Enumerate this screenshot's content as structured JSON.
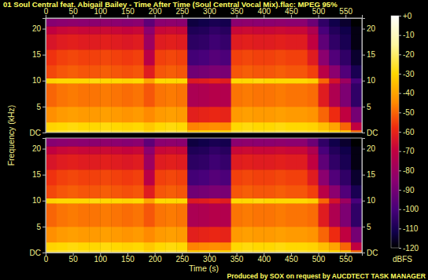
{
  "chart_data": {
    "type": "heatmap",
    "title": "01 Soul Central feat. Abigail Bailey - Time After Time (Soul Central Vocal Mix).flac: MPEG 95%",
    "annotation": "Produced by SOX on request by AUCDTECT TASK MANAGER",
    "x_label": "Time (s)",
    "y_label": "Frequency (kHz)",
    "xlim": [
      0,
      580
    ],
    "xticks": [
      0,
      50,
      100,
      150,
      200,
      250,
      300,
      350,
      400,
      450,
      500,
      550
    ],
    "ylim": [
      0,
      22.05
    ],
    "yticks": [
      {
        "value": 0,
        "label": "DC"
      },
      5,
      10,
      15,
      20
    ],
    "x_edges": [
      0,
      20,
      40,
      60,
      80,
      100,
      120,
      140,
      160,
      180,
      200,
      220,
      240,
      260,
      280,
      300,
      320,
      340,
      360,
      380,
      400,
      420,
      440,
      460,
      480,
      500,
      520,
      540,
      560,
      580
    ],
    "y_edges": [
      0,
      0.5,
      2,
      5,
      9.5,
      10.5,
      13,
      16,
      19,
      20.5,
      22.05
    ],
    "channels": [
      {
        "cells": [
          [
            -26,
            -25,
            -24,
            -25,
            -25,
            -24,
            -25,
            -26,
            -25,
            -28,
            -25,
            -24,
            -25,
            -33,
            -32,
            -31,
            -32,
            -25,
            -24,
            -25,
            -25,
            -24,
            -25,
            -25,
            -26,
            -28,
            -30,
            -35,
            -50
          ],
          [
            -31,
            -30,
            -29,
            -30,
            -30,
            -29,
            -30,
            -31,
            -30,
            -33,
            -30,
            -29,
            -30,
            -46,
            -45,
            -44,
            -45,
            -30,
            -29,
            -30,
            -30,
            -29,
            -30,
            -30,
            -31,
            -35,
            -40,
            -50,
            -70
          ],
          [
            -44,
            -42,
            -41,
            -42,
            -42,
            -41,
            -42,
            -43,
            -42,
            -45,
            -42,
            -41,
            -42,
            -61,
            -60,
            -59,
            -60,
            -42,
            -41,
            -42,
            -42,
            -41,
            -42,
            -42,
            -43,
            -50,
            -58,
            -70,
            -90
          ],
          [
            -50,
            -48,
            -47,
            -48,
            -48,
            -47,
            -48,
            -49,
            -48,
            -52,
            -48,
            -47,
            -48,
            -76,
            -75,
            -73,
            -74,
            -48,
            -47,
            -48,
            -48,
            -47,
            -48,
            -48,
            -49,
            -62,
            -75,
            -88,
            -105
          ],
          [
            -31,
            -30,
            -30,
            -30,
            -29,
            -30,
            -30,
            -31,
            -30,
            -40,
            -30,
            -30,
            -30,
            -63,
            -62,
            -60,
            -62,
            -30,
            -30,
            -29,
            -30,
            -30,
            -30,
            -30,
            -32,
            -50,
            -65,
            -80,
            -100
          ],
          [
            -54,
            -52,
            -51,
            -52,
            -52,
            -51,
            -52,
            -53,
            -52,
            -62,
            -52,
            -51,
            -52,
            -91,
            -90,
            -88,
            -89,
            -52,
            -51,
            -52,
            -52,
            -51,
            -52,
            -52,
            -55,
            -72,
            -85,
            -98,
            -110
          ],
          [
            -57,
            -55,
            -54,
            -55,
            -55,
            -54,
            -55,
            -56,
            -55,
            -72,
            -55,
            -54,
            -55,
            -101,
            -100,
            -97,
            -99,
            -55,
            -54,
            -55,
            -55,
            -54,
            -55,
            -55,
            -62,
            -85,
            -98,
            -105,
            -115
          ],
          [
            -64,
            -62,
            -61,
            -62,
            -62,
            -61,
            -62,
            -63,
            -62,
            -80,
            -62,
            -61,
            -62,
            -106,
            -105,
            -102,
            -104,
            -62,
            -61,
            -62,
            -62,
            -61,
            -62,
            -62,
            -70,
            -95,
            -105,
            -110,
            -118
          ],
          [
            -70,
            -68,
            -67,
            -68,
            -68,
            -67,
            -68,
            -69,
            -68,
            -85,
            -68,
            -67,
            -68,
            -109,
            -108,
            -105,
            -107,
            -68,
            -67,
            -68,
            -68,
            -67,
            -68,
            -68,
            -75,
            -100,
            -108,
            -112,
            -118
          ],
          [
            -86,
            -85,
            -84,
            -85,
            -85,
            -84,
            -85,
            -86,
            -85,
            -95,
            -85,
            -84,
            -85,
            -113,
            -112,
            -110,
            -111,
            -85,
            -84,
            -85,
            -85,
            -84,
            -85,
            -85,
            -92,
            -105,
            -112,
            -115,
            -120
          ]
        ]
      },
      {
        "cells": [
          [
            -26,
            -25,
            -24,
            -25,
            -25,
            -24,
            -25,
            -26,
            -25,
            -28,
            -25,
            -24,
            -25,
            -33,
            -32,
            -31,
            -32,
            -25,
            -24,
            -25,
            -25,
            -24,
            -25,
            -25,
            -26,
            -28,
            -30,
            -35,
            -50
          ],
          [
            -31,
            -30,
            -29,
            -30,
            -30,
            -29,
            -30,
            -31,
            -30,
            -33,
            -30,
            -29,
            -30,
            -46,
            -45,
            -44,
            -45,
            -30,
            -29,
            -30,
            -30,
            -29,
            -30,
            -30,
            -31,
            -35,
            -40,
            -50,
            -70
          ],
          [
            -44,
            -42,
            -41,
            -42,
            -42,
            -41,
            -42,
            -43,
            -42,
            -45,
            -42,
            -41,
            -42,
            -61,
            -60,
            -59,
            -60,
            -42,
            -41,
            -42,
            -42,
            -41,
            -42,
            -42,
            -43,
            -50,
            -58,
            -70,
            -90
          ],
          [
            -50,
            -48,
            -47,
            -48,
            -48,
            -47,
            -48,
            -49,
            -48,
            -52,
            -48,
            -47,
            -48,
            -76,
            -75,
            -73,
            -74,
            -48,
            -47,
            -48,
            -48,
            -47,
            -48,
            -48,
            -49,
            -62,
            -75,
            -88,
            -105
          ],
          [
            -31,
            -30,
            -30,
            -30,
            -29,
            -30,
            -30,
            -31,
            -30,
            -40,
            -30,
            -30,
            -30,
            -63,
            -62,
            -60,
            -62,
            -30,
            -30,
            -29,
            -30,
            -30,
            -30,
            -30,
            -32,
            -50,
            -65,
            -80,
            -100
          ],
          [
            -54,
            -52,
            -51,
            -52,
            -52,
            -51,
            -52,
            -53,
            -52,
            -62,
            -52,
            -51,
            -52,
            -91,
            -90,
            -88,
            -89,
            -52,
            -51,
            -52,
            -52,
            -51,
            -52,
            -52,
            -55,
            -72,
            -85,
            -98,
            -110
          ],
          [
            -57,
            -55,
            -54,
            -55,
            -55,
            -54,
            -55,
            -56,
            -55,
            -72,
            -55,
            -54,
            -55,
            -101,
            -100,
            -97,
            -99,
            -55,
            -54,
            -55,
            -55,
            -54,
            -55,
            -55,
            -62,
            -85,
            -98,
            -105,
            -115
          ],
          [
            -64,
            -62,
            -61,
            -62,
            -62,
            -61,
            -62,
            -63,
            -62,
            -80,
            -62,
            -61,
            -62,
            -106,
            -105,
            -102,
            -104,
            -62,
            -61,
            -62,
            -62,
            -61,
            -62,
            -62,
            -70,
            -95,
            -105,
            -110,
            -118
          ],
          [
            -70,
            -68,
            -67,
            -68,
            -68,
            -67,
            -68,
            -69,
            -68,
            -85,
            -68,
            -67,
            -68,
            -109,
            -108,
            -105,
            -107,
            -68,
            -67,
            -68,
            -68,
            -67,
            -68,
            -68,
            -75,
            -100,
            -108,
            -112,
            -118
          ],
          [
            -86,
            -85,
            -84,
            -85,
            -85,
            -84,
            -85,
            -86,
            -85,
            -95,
            -85,
            -84,
            -85,
            -113,
            -112,
            -110,
            -111,
            -85,
            -84,
            -85,
            -85,
            -84,
            -85,
            -85,
            -92,
            -105,
            -112,
            -115,
            -120
          ]
        ]
      }
    ],
    "colorbar": {
      "range": [
        -120,
        0
      ],
      "ticks": [
        {
          "value": 0,
          "label": "+0"
        },
        -10,
        -20,
        -30,
        -40,
        -50,
        -60,
        -70,
        -80,
        -90,
        -100,
        -110,
        -120
      ],
      "label": "dBFS"
    }
  }
}
